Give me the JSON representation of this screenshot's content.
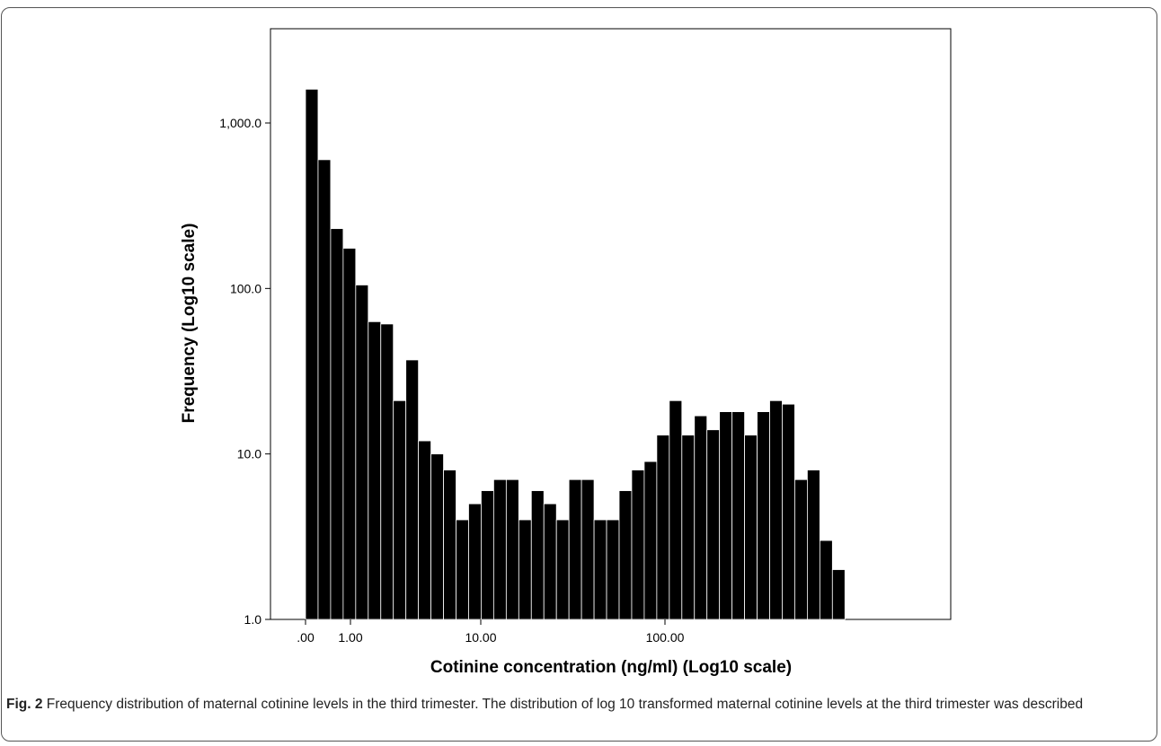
{
  "caption": {
    "label": "Fig. 2",
    "text": "Frequency distribution of maternal cotinine levels in the third trimester. The distribution of log 10 transformed maternal cotinine levels at the third trimester was described"
  },
  "chart_data": {
    "type": "bar",
    "xlabel": "Cotinine concentration (ng/ml) (Log10 scale)",
    "ylabel": "Frequency (Log10 scale)",
    "x_tick_labels": [
      ".00",
      "1.00",
      "10.00",
      "100.00"
    ],
    "y_tick_labels": [
      "1.0",
      "10.0",
      "100.0",
      "1,000.0"
    ],
    "y_tick_values": [
      1,
      10,
      100,
      1000
    ],
    "ylim": [
      1,
      5000
    ],
    "yscale": "log",
    "xscale": "log10(x+1)",
    "xlim_log10": [
      -0.37,
      3.2
    ],
    "bin_start_log10": 0.0,
    "bin_width_log10": 0.0698,
    "values": [
      1600,
      600,
      230,
      175,
      105,
      63,
      61,
      21,
      37,
      12,
      10,
      8,
      4,
      5,
      6,
      7,
      7,
      4,
      6,
      5,
      4,
      7,
      7,
      4,
      4,
      6,
      8,
      9,
      13,
      21,
      13,
      17,
      14,
      18,
      18,
      13,
      18,
      21,
      20,
      7,
      8,
      3,
      2
    ],
    "bar_color": "#000000",
    "grid": false,
    "legend": "none"
  }
}
